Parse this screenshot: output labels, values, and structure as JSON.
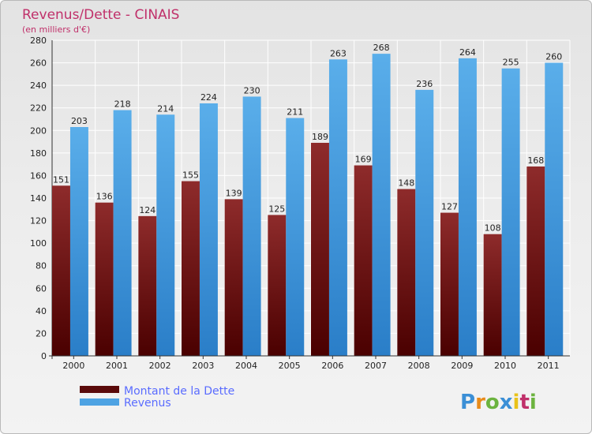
{
  "chart_data": {
    "type": "bar",
    "title": "Revenus/Dette - CINAIS",
    "subtitle": "(en milliers d'€)",
    "categories": [
      "2000",
      "2001",
      "2002",
      "2003",
      "2004",
      "2005",
      "2006",
      "2007",
      "2008",
      "2009",
      "2010",
      "2011"
    ],
    "series": [
      {
        "name": "Montant de la Dette",
        "values": [
          151,
          136,
          124,
          155,
          139,
          125,
          189,
          169,
          148,
          127,
          108,
          168
        ],
        "color": "#7a1f1f"
      },
      {
        "name": "Revenus",
        "values": [
          203,
          218,
          214,
          224,
          230,
          211,
          263,
          268,
          236,
          264,
          255,
          260
        ],
        "color": "#4ea3e3"
      }
    ],
    "ylim": [
      0,
      280
    ],
    "yticks": [
      0,
      20,
      40,
      60,
      80,
      100,
      120,
      140,
      160,
      180,
      200,
      220,
      240,
      260,
      280
    ],
    "grid": true,
    "legend_position": "bottom-left"
  },
  "colors": {
    "title": "#c0306a",
    "legend_text": "#5a6cff",
    "axis_text": "#222222"
  },
  "logo": "Proxiti"
}
